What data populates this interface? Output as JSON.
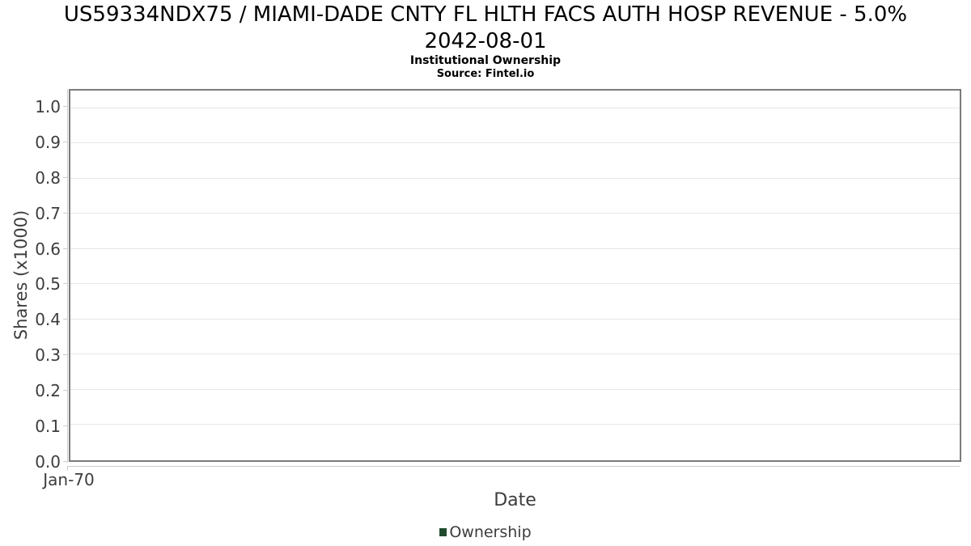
{
  "header": {
    "title_line1": "US59334NDX75 / MIAMI-DADE CNTY FL HLTH FACS AUTH HOSP REVENUE - 5.0%",
    "title_line2": "2042-08-01",
    "subtitle": "Institutional Ownership",
    "source": "Source: Fintel.io"
  },
  "chart_data": {
    "type": "line",
    "title": "US59334NDX75 / MIAMI-DADE CNTY FL HLTH FACS AUTH HOSP REVENUE - 5.0% 2042-08-01",
    "subtitle": "Institutional Ownership",
    "source_note": "Source: Fintel.io",
    "xlabel": "Date",
    "ylabel": "Shares (x1000)",
    "xticks": [
      "Jan-70"
    ],
    "yticks": [
      0.0,
      0.1,
      0.2,
      0.3,
      0.4,
      0.5,
      0.6,
      0.7,
      0.8,
      0.9,
      1.0
    ],
    "ylim": [
      0,
      1.05
    ],
    "grid": true,
    "legend_position": "bottom",
    "series": [
      {
        "name": "Ownership",
        "color": "#204a2e",
        "x": [],
        "values": []
      }
    ]
  },
  "colors": {
    "background": "#ffffff",
    "title_text": "#000000",
    "axis_text": "#3d3d3d",
    "plot_border": "#7b7b7b",
    "axis_line": "#cccccc",
    "gridline": "#e6e6e6",
    "ownership_green": "#204a2e"
  }
}
